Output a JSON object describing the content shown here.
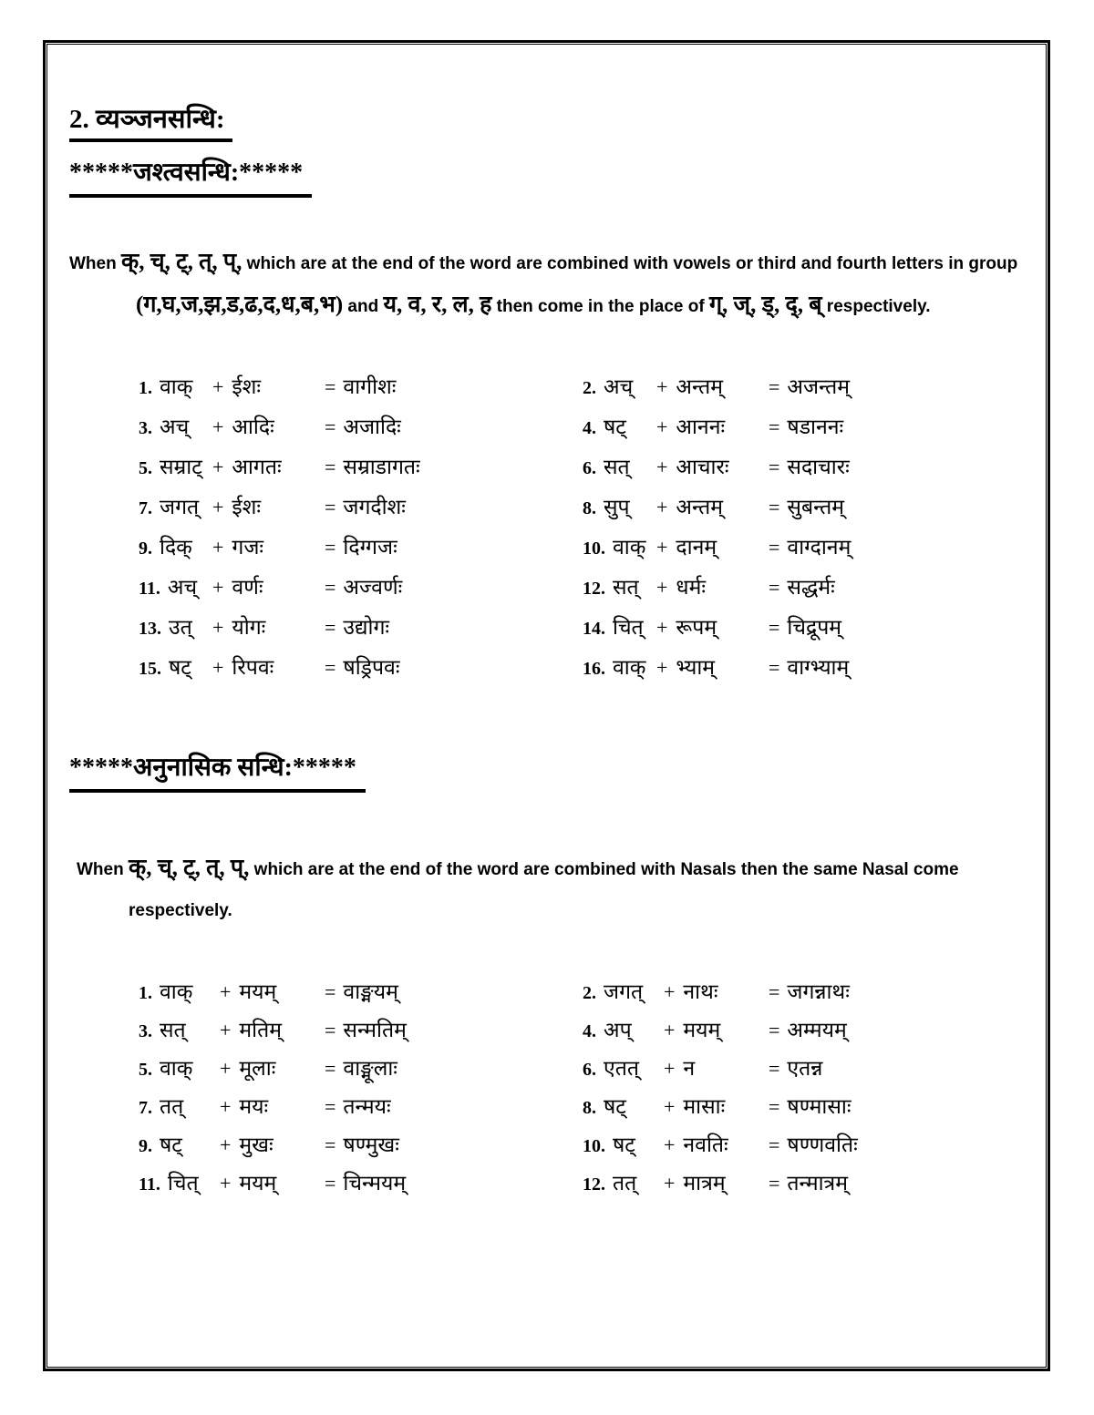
{
  "document": {
    "section1": {
      "title": "2. व्यञ्जनसन्धि:",
      "subtitle": "*****जश्त्वसन्धि:*****",
      "intro": [
        {
          "text": "When ",
          "script": "en"
        },
        {
          "text": "क्, च्, ट्, त्, प्,",
          "script": "dev"
        },
        {
          "text": " which are at the end of the word are combined with vowels or third and fourth letters in group ",
          "script": "en"
        },
        {
          "text": "(ग,घ,ज,झ,ड,ढ,द,ध,ब,भ)",
          "script": "dev"
        },
        {
          "text": " and ",
          "script": "en"
        },
        {
          "text": "य, व, र, ल, ह",
          "script": "dev"
        },
        {
          "text": " then come in the place of ",
          "script": "en"
        },
        {
          "text": "ग्, ज्, ड्, द्, ब्",
          "script": "dev"
        },
        {
          "text": " respectively.",
          "script": "en"
        }
      ],
      "examples": [
        {
          "num": "1.",
          "a": "वाक्",
          "b": "ईशः",
          "result": "वागीशः"
        },
        {
          "num": "2.",
          "a": "अच्",
          "b": "अन्तम्",
          "result": "अजन्तम्"
        },
        {
          "num": "3.",
          "a": "अच्",
          "b": "आदिः",
          "result": "अजादिः"
        },
        {
          "num": "4.",
          "a": "षट्",
          "b": "आननः",
          "result": "षडाननः"
        },
        {
          "num": "5.",
          "a": "सम्राट्",
          "b": "आगतः",
          "result": "सम्राडागतः"
        },
        {
          "num": "6.",
          "a": "सत्",
          "b": "आचारः",
          "result": "सदाचारः"
        },
        {
          "num": "7.",
          "a": "जगत्",
          "b": "ईशः",
          "result": "जगदीशः"
        },
        {
          "num": "8.",
          "a": "सुप्",
          "b": "अन्तम्",
          "result": "सुबन्तम्"
        },
        {
          "num": "9.",
          "a": "दिक्",
          "b": "गजः",
          "result": "दिग्गजः"
        },
        {
          "num": "10.",
          "a": "वाक्",
          "b": "दानम्",
          "result": "वाग्दानम्"
        },
        {
          "num": "11.",
          "a": "अच्",
          "b": "वर्णः",
          "result": "अज्वर्णः"
        },
        {
          "num": "12.",
          "a": "सत्",
          "b": "धर्मः",
          "result": "सद्धर्मः"
        },
        {
          "num": "13.",
          "a": "उत्",
          "b": "योगः",
          "result": "उद्योगः"
        },
        {
          "num": "14.",
          "a": "चित्",
          "b": "रूपम्",
          "result": "चिद्रूपम्"
        },
        {
          "num": "15.",
          "a": "षट्",
          "b": "रिपवः",
          "result": "षड्रिपवः"
        },
        {
          "num": "16.",
          "a": "वाक्",
          "b": "भ्याम्",
          "result": "वाग्भ्याम्"
        }
      ]
    },
    "section2": {
      "title": "*****अनुनासिक सन्धि:*****",
      "intro": [
        {
          "text": "When ",
          "script": "en"
        },
        {
          "text": "क्, च्, ट्, त्, प्,",
          "script": "dev"
        },
        {
          "text": " which are at the end of the word are combined with Nasals then the same Nasal come respectively.",
          "script": "en"
        }
      ],
      "examples": [
        {
          "num": "1.",
          "a": "वाक्",
          "b": "मयम्",
          "result": "वाङ्मयम्"
        },
        {
          "num": "2.",
          "a": "जगत्",
          "b": "नाथः",
          "result": "जगन्नाथः"
        },
        {
          "num": "3.",
          "a": "सत्",
          "b": "मतिम्",
          "result": "सन्मतिम्"
        },
        {
          "num": "4.",
          "a": "अप्",
          "b": "मयम्",
          "result": "अम्मयम्"
        },
        {
          "num": "5.",
          "a": "वाक्",
          "b": "मूलाः",
          "result": "वाङ्मूलाः"
        },
        {
          "num": "6.",
          "a": "एतत्",
          "b": "न",
          "result": "एतन्न"
        },
        {
          "num": "7.",
          "a": "तत्",
          "b": "मयः",
          "result": "तन्मयः"
        },
        {
          "num": "8.",
          "a": "षट्",
          "b": "मासाः",
          "result": "षण्मासाः"
        },
        {
          "num": "9.",
          "a": "षट्",
          "b": "मुखः",
          "result": "षण्मुखः"
        },
        {
          "num": "10.",
          "a": "षट्",
          "b": "नवतिः",
          "result": "षण्णवतिः"
        },
        {
          "num": "11.",
          "a": "चित्",
          "b": "मयम्",
          "result": "चिन्मयम्"
        },
        {
          "num": "12.",
          "a": "तत्",
          "b": "मात्रम्",
          "result": "तन्मात्रम्"
        }
      ]
    },
    "symbols": {
      "plus": "+",
      "equals": "="
    },
    "colors": {
      "text": "#000000",
      "background": "#ffffff",
      "border": "#000000"
    }
  }
}
